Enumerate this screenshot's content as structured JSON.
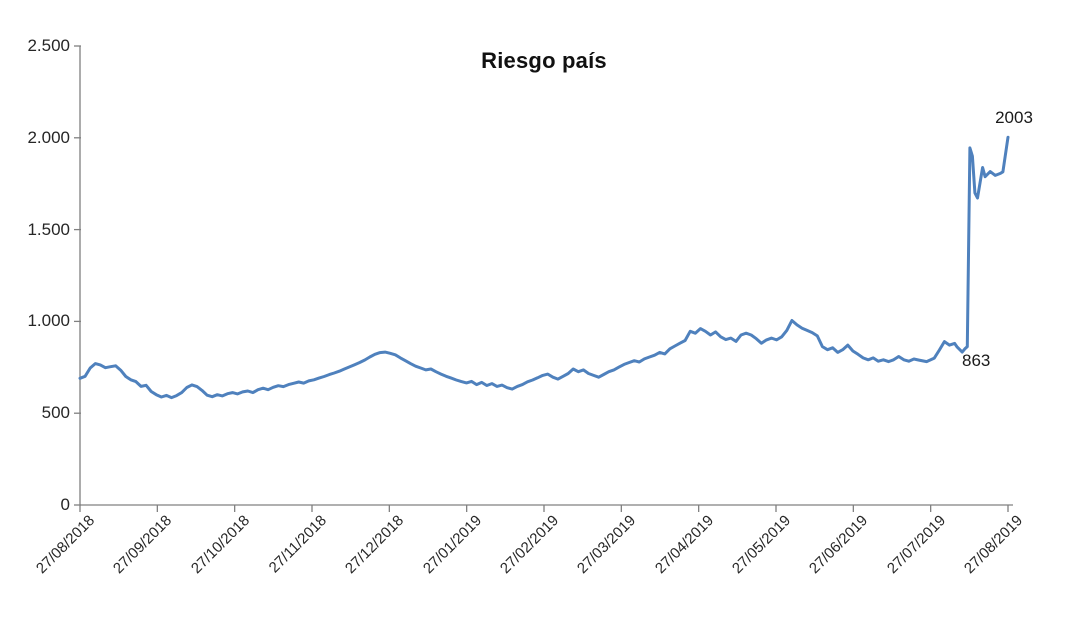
{
  "page": {
    "background": "#ffffff"
  },
  "chart_data": {
    "type": "line",
    "title": "Riesgo país",
    "xlabel": "",
    "ylabel": "",
    "grid": false,
    "legend": "none",
    "ylim": [
      0,
      2500
    ],
    "x_axis_is_dates": true,
    "x_range_days": [
      0,
      365
    ],
    "x_tick_labels": [
      "27/08/2018",
      "27/09/2018",
      "27/10/2018",
      "27/11/2018",
      "27/12/2018",
      "27/01/2019",
      "27/02/2019",
      "27/03/2019",
      "27/04/2019",
      "27/05/2019",
      "27/06/2019",
      "27/07/2019",
      "27/08/2019"
    ],
    "y_tick_labels": [
      "2.500",
      "2.000",
      "1.500",
      "1.000",
      "500",
      "0"
    ],
    "y_tick_values": [
      2500,
      2000,
      1500,
      1000,
      500,
      0
    ],
    "axis_color": "#808080",
    "text_color": "#262626",
    "series": [
      {
        "name": "Riesgo país",
        "color": "#4f81bd",
        "line_width": 3,
        "points": [
          [
            0,
            690
          ],
          [
            2,
            701
          ],
          [
            4,
            746
          ],
          [
            6,
            770
          ],
          [
            8,
            763
          ],
          [
            10,
            748
          ],
          [
            12,
            753
          ],
          [
            14,
            758
          ],
          [
            16,
            734
          ],
          [
            18,
            700
          ],
          [
            20,
            682
          ],
          [
            22,
            672
          ],
          [
            24,
            646
          ],
          [
            26,
            652
          ],
          [
            28,
            618
          ],
          [
            30,
            601
          ],
          [
            32,
            588
          ],
          [
            34,
            597
          ],
          [
            36,
            585
          ],
          [
            38,
            596
          ],
          [
            40,
            612
          ],
          [
            42,
            640
          ],
          [
            44,
            654
          ],
          [
            46,
            645
          ],
          [
            48,
            624
          ],
          [
            50,
            598
          ],
          [
            52,
            590
          ],
          [
            54,
            601
          ],
          [
            56,
            594
          ],
          [
            58,
            606
          ],
          [
            60,
            612
          ],
          [
            62,
            605
          ],
          [
            64,
            616
          ],
          [
            66,
            621
          ],
          [
            68,
            612
          ],
          [
            70,
            628
          ],
          [
            72,
            636
          ],
          [
            74,
            628
          ],
          [
            76,
            641
          ],
          [
            78,
            650
          ],
          [
            80,
            645
          ],
          [
            82,
            656
          ],
          [
            84,
            663
          ],
          [
            86,
            670
          ],
          [
            88,
            664
          ],
          [
            90,
            676
          ],
          [
            92,
            682
          ],
          [
            94,
            691
          ],
          [
            96,
            700
          ],
          [
            98,
            710
          ],
          [
            100,
            719
          ],
          [
            102,
            729
          ],
          [
            104,
            741
          ],
          [
            106,
            752
          ],
          [
            108,
            764
          ],
          [
            110,
            776
          ],
          [
            112,
            790
          ],
          [
            114,
            806
          ],
          [
            116,
            821
          ],
          [
            118,
            830
          ],
          [
            120,
            833
          ],
          [
            122,
            826
          ],
          [
            124,
            818
          ],
          [
            126,
            801
          ],
          [
            128,
            786
          ],
          [
            130,
            770
          ],
          [
            132,
            756
          ],
          [
            134,
            746
          ],
          [
            136,
            736
          ],
          [
            138,
            741
          ],
          [
            140,
            726
          ],
          [
            142,
            713
          ],
          [
            144,
            701
          ],
          [
            146,
            691
          ],
          [
            148,
            681
          ],
          [
            150,
            672
          ],
          [
            152,
            665
          ],
          [
            154,
            673
          ],
          [
            156,
            656
          ],
          [
            158,
            668
          ],
          [
            160,
            651
          ],
          [
            162,
            661
          ],
          [
            164,
            646
          ],
          [
            166,
            653
          ],
          [
            168,
            639
          ],
          [
            170,
            631
          ],
          [
            172,
            646
          ],
          [
            174,
            656
          ],
          [
            176,
            671
          ],
          [
            178,
            681
          ],
          [
            180,
            693
          ],
          [
            182,
            706
          ],
          [
            184,
            713
          ],
          [
            186,
            696
          ],
          [
            188,
            686
          ],
          [
            190,
            701
          ],
          [
            192,
            716
          ],
          [
            194,
            741
          ],
          [
            196,
            726
          ],
          [
            198,
            736
          ],
          [
            200,
            716
          ],
          [
            202,
            706
          ],
          [
            204,
            696
          ],
          [
            206,
            711
          ],
          [
            208,
            726
          ],
          [
            210,
            736
          ],
          [
            212,
            751
          ],
          [
            214,
            766
          ],
          [
            216,
            776
          ],
          [
            218,
            786
          ],
          [
            220,
            779
          ],
          [
            222,
            796
          ],
          [
            224,
            806
          ],
          [
            226,
            816
          ],
          [
            228,
            831
          ],
          [
            230,
            823
          ],
          [
            232,
            851
          ],
          [
            234,
            866
          ],
          [
            236,
            881
          ],
          [
            238,
            896
          ],
          [
            240,
            946
          ],
          [
            242,
            936
          ],
          [
            244,
            961
          ],
          [
            246,
            946
          ],
          [
            248,
            926
          ],
          [
            250,
            943
          ],
          [
            252,
            916
          ],
          [
            254,
            901
          ],
          [
            256,
            909
          ],
          [
            258,
            891
          ],
          [
            260,
            926
          ],
          [
            262,
            936
          ],
          [
            264,
            926
          ],
          [
            266,
            906
          ],
          [
            268,
            881
          ],
          [
            270,
            899
          ],
          [
            272,
            909
          ],
          [
            274,
            899
          ],
          [
            276,
            916
          ],
          [
            278,
            951
          ],
          [
            280,
            1005
          ],
          [
            282,
            981
          ],
          [
            284,
            963
          ],
          [
            286,
            951
          ],
          [
            288,
            939
          ],
          [
            290,
            921
          ],
          [
            292,
            863
          ],
          [
            294,
            846
          ],
          [
            296,
            856
          ],
          [
            298,
            831
          ],
          [
            300,
            846
          ],
          [
            302,
            871
          ],
          [
            304,
            839
          ],
          [
            306,
            821
          ],
          [
            308,
            801
          ],
          [
            310,
            791
          ],
          [
            312,
            801
          ],
          [
            314,
            783
          ],
          [
            316,
            791
          ],
          [
            318,
            781
          ],
          [
            320,
            791
          ],
          [
            322,
            809
          ],
          [
            324,
            791
          ],
          [
            326,
            783
          ],
          [
            328,
            795
          ],
          [
            330,
            789
          ],
          [
            333,
            781
          ],
          [
            336,
            800
          ],
          [
            338,
            844
          ],
          [
            340,
            890
          ],
          [
            342,
            871
          ],
          [
            344,
            880
          ],
          [
            345,
            860
          ],
          [
            347,
            833
          ],
          [
            348,
            850
          ],
          [
            349,
            863
          ],
          [
            350,
            1945
          ],
          [
            351,
            1900
          ],
          [
            352,
            1700
          ],
          [
            353,
            1672
          ],
          [
            355,
            1838
          ],
          [
            356,
            1788
          ],
          [
            358,
            1816
          ],
          [
            360,
            1795
          ],
          [
            362,
            1806
          ],
          [
            363,
            1815
          ],
          [
            365,
            2003
          ]
        ]
      }
    ],
    "annotations": [
      {
        "text": "2003",
        "day": 365,
        "value": 2003
      },
      {
        "text": "863",
        "day": 349,
        "value": 863
      }
    ]
  }
}
